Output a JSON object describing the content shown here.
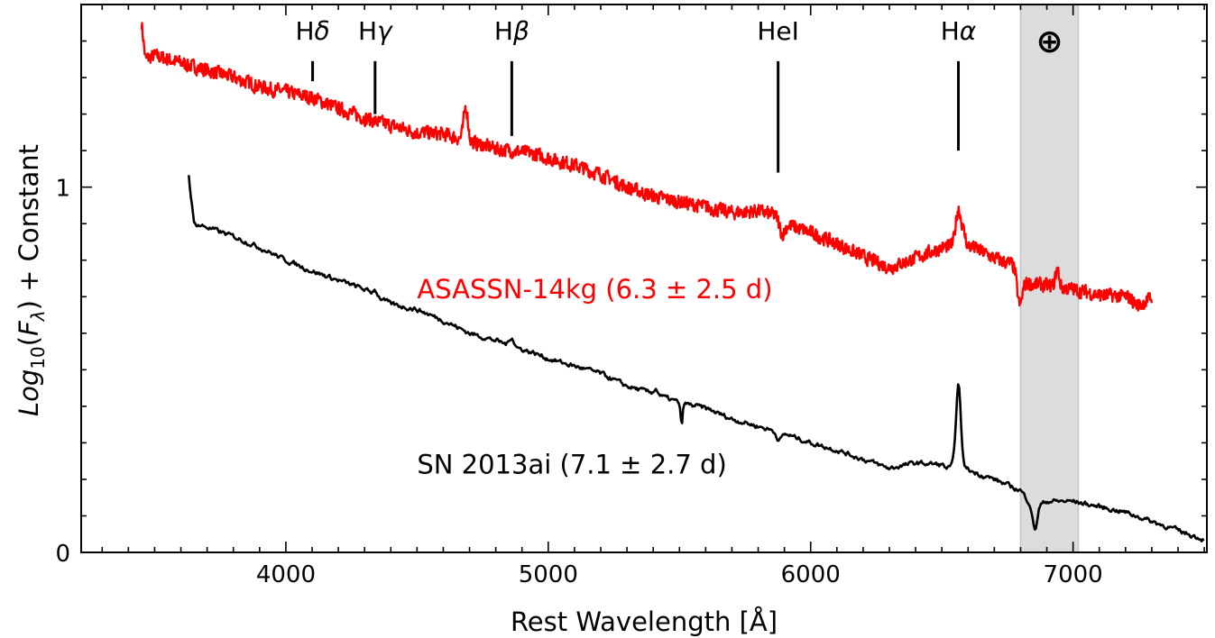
{
  "chart_data": {
    "type": "line",
    "xlabel": "Rest Wavelength [Å]",
    "ylabel": "Log10(Fλ) + Constant",
    "ylabel_parts": {
      "log": "Log",
      "sub": "10",
      "open": "(",
      "f": "F",
      "lambda": "λ",
      "close": ") + Constant"
    },
    "xlim": [
      3220,
      7510
    ],
    "ylim": [
      0,
      1.5
    ],
    "x_ticks": [
      4000,
      5000,
      6000,
      7000
    ],
    "x_tick_labels": [
      "4000",
      "5000",
      "6000",
      "7000"
    ],
    "y_ticks": [
      0,
      1
    ],
    "y_tick_labels": [
      "0",
      "1"
    ],
    "grid": false,
    "telluric_band": {
      "x_range": [
        6800,
        7020
      ],
      "symbol": "⊕",
      "color": "#dcdcdc"
    },
    "line_markers": [
      {
        "name": "Hδ",
        "h": "H",
        "greek": "δ",
        "x": 4102,
        "y_top": 1.345,
        "y_bottom": 1.29
      },
      {
        "name": "Hγ",
        "h": "H",
        "greek": "γ",
        "x": 4340,
        "y_top": 1.345,
        "y_bottom": 1.2
      },
      {
        "name": "Hβ",
        "h": "H",
        "greek": "β",
        "x": 4861,
        "y_top": 1.345,
        "y_bottom": 1.14
      },
      {
        "name": "HeI",
        "h": "HeI",
        "greek": "",
        "x": 5876,
        "y_top": 1.345,
        "y_bottom": 1.04
      },
      {
        "name": "Hα",
        "h": "H",
        "greek": "α",
        "x": 6563,
        "y_top": 1.345,
        "y_bottom": 1.1
      }
    ],
    "series": [
      {
        "name": "ASASSN-14kg (6.3 ± 2.5 d)",
        "color": "#ff0000",
        "label_position": [
          4500,
          0.72
        ],
        "noise": 0.012,
        "points": [
          [
            3450,
            1.45
          ],
          [
            3465,
            1.35
          ],
          [
            3500,
            1.36
          ],
          [
            3600,
            1.34
          ],
          [
            3700,
            1.32
          ],
          [
            3800,
            1.3
          ],
          [
            3900,
            1.275
          ],
          [
            4000,
            1.26
          ],
          [
            4102,
            1.245
          ],
          [
            4200,
            1.215
          ],
          [
            4340,
            1.18
          ],
          [
            4420,
            1.165
          ],
          [
            4500,
            1.15
          ],
          [
            4600,
            1.145
          ],
          [
            4680,
            1.13
          ],
          [
            4700,
            1.125
          ],
          [
            4800,
            1.105
          ],
          [
            4861,
            1.1
          ],
          [
            4950,
            1.09
          ],
          [
            5000,
            1.08
          ],
          [
            5100,
            1.06
          ],
          [
            5200,
            1.035
          ],
          [
            5300,
            1.0
          ],
          [
            5400,
            0.975
          ],
          [
            5500,
            0.96
          ],
          [
            5600,
            0.945
          ],
          [
            5700,
            0.93
          ],
          [
            5800,
            0.935
          ],
          [
            5876,
            0.92
          ],
          [
            5900,
            0.9
          ],
          [
            6000,
            0.875
          ],
          [
            6100,
            0.845
          ],
          [
            6200,
            0.81
          ],
          [
            6300,
            0.78
          ],
          [
            6400,
            0.805
          ],
          [
            6500,
            0.835
          ],
          [
            6563,
            0.84
          ],
          [
            6620,
            0.835
          ],
          [
            6700,
            0.805
          ],
          [
            6780,
            0.785
          ],
          [
            6800,
            0.74
          ],
          [
            6900,
            0.73
          ],
          [
            7000,
            0.72
          ],
          [
            7100,
            0.705
          ],
          [
            7200,
            0.7
          ],
          [
            7300,
            0.695
          ]
        ],
        "features": [
          {
            "x": 4686,
            "w": 8,
            "a": 0.09
          },
          {
            "x": 6563,
            "w": 10,
            "a": 0.1
          },
          {
            "x": 6583,
            "w": 8,
            "a": 0.03
          },
          {
            "x": 6795,
            "w": 10,
            "a": -0.07
          },
          {
            "x": 5890,
            "w": 10,
            "a": -0.035
          },
          {
            "x": 6940,
            "w": 7,
            "a": 0.05
          },
          {
            "x": 7250,
            "w": 20,
            "a": -0.02
          }
        ]
      },
      {
        "name": "SN 2013ai (7.1 ± 2.7 d)",
        "color": "#000000",
        "label_position": [
          4500,
          0.24
        ],
        "noise": 0.006,
        "points": [
          [
            3630,
            1.03
          ],
          [
            3650,
            0.9
          ],
          [
            3700,
            0.89
          ],
          [
            3800,
            0.865
          ],
          [
            3900,
            0.835
          ],
          [
            4000,
            0.8
          ],
          [
            4100,
            0.77
          ],
          [
            4200,
            0.745
          ],
          [
            4300,
            0.72
          ],
          [
            4400,
            0.68
          ],
          [
            4500,
            0.665
          ],
          [
            4600,
            0.635
          ],
          [
            4700,
            0.6
          ],
          [
            4800,
            0.58
          ],
          [
            4861,
            0.565
          ],
          [
            4950,
            0.545
          ],
          [
            5000,
            0.53
          ],
          [
            5100,
            0.51
          ],
          [
            5200,
            0.49
          ],
          [
            5300,
            0.455
          ],
          [
            5400,
            0.435
          ],
          [
            5500,
            0.41
          ],
          [
            5600,
            0.395
          ],
          [
            5700,
            0.365
          ],
          [
            5800,
            0.345
          ],
          [
            5900,
            0.325
          ],
          [
            6000,
            0.3
          ],
          [
            6100,
            0.28
          ],
          [
            6200,
            0.255
          ],
          [
            6300,
            0.23
          ],
          [
            6400,
            0.245
          ],
          [
            6500,
            0.24
          ],
          [
            6520,
            0.23
          ],
          [
            6563,
            0.24
          ],
          [
            6620,
            0.22
          ],
          [
            6700,
            0.2
          ],
          [
            6780,
            0.175
          ],
          [
            6800,
            0.17
          ],
          [
            6850,
            0.12
          ],
          [
            6900,
            0.14
          ],
          [
            7000,
            0.14
          ],
          [
            7100,
            0.125
          ],
          [
            7200,
            0.11
          ],
          [
            7300,
            0.085
          ],
          [
            7400,
            0.06
          ],
          [
            7500,
            0.035
          ]
        ],
        "features": [
          {
            "x": 6563,
            "w": 9,
            "a": 0.22
          },
          {
            "x": 5508,
            "w": 4,
            "a": -0.06
          },
          {
            "x": 5410,
            "w": 8,
            "a": 0.015
          },
          {
            "x": 4340,
            "w": 8,
            "a": 0.015
          },
          {
            "x": 4861,
            "w": 8,
            "a": 0.025
          },
          {
            "x": 6855,
            "w": 8,
            "a": -0.06
          },
          {
            "x": 5880,
            "w": 10,
            "a": -0.02
          }
        ]
      }
    ]
  }
}
